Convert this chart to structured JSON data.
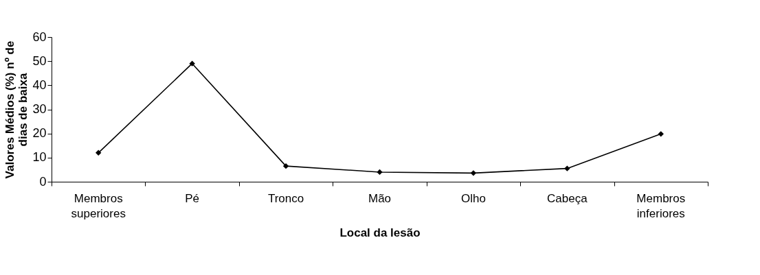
{
  "chart_data": {
    "type": "line",
    "xlabel": "Local da lesão",
    "ylabel": "Valores Médios (%) nº de dias de baixa",
    "categories": [
      "Membros superiores",
      "Pé",
      "Tronco",
      "Mão",
      "Olho",
      "Cabeça",
      "Membros inferiores"
    ],
    "series": [
      {
        "color": "#000000",
        "values": [
          12,
          49,
          6.5,
          4,
          3.6,
          5.5,
          19.8
        ]
      }
    ],
    "ylim": [
      0,
      60
    ],
    "yticks": [
      0,
      10,
      20,
      30,
      40,
      50,
      60
    ],
    "grid": false,
    "marker": "diamond",
    "line_style": "solid"
  }
}
